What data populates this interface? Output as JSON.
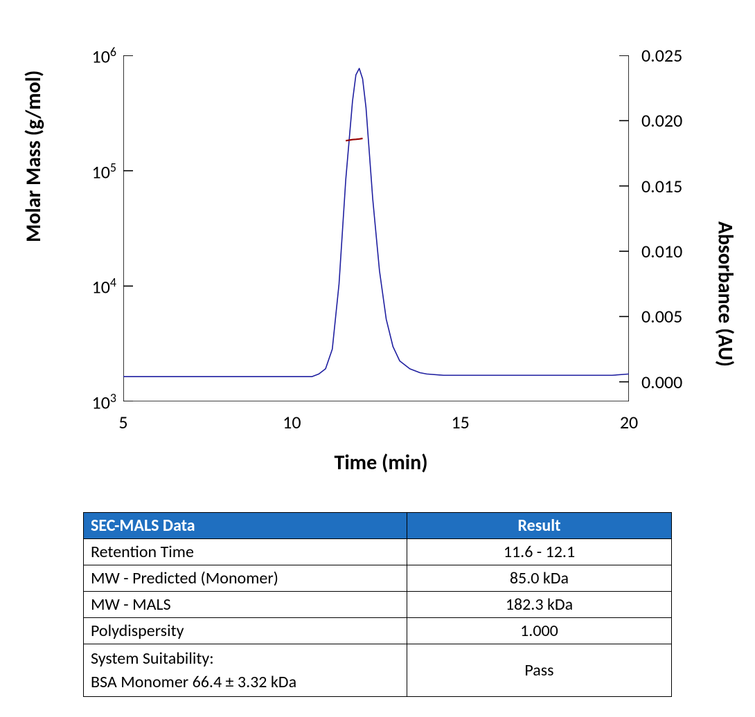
{
  "chart": {
    "type": "line-dual-axis",
    "xlabel": "Time (min)",
    "y1label": "Molar Mass (g/mol)",
    "y2label": "Absorbance (AU)",
    "xlim": [
      5,
      20
    ],
    "xtick_step": 5,
    "xticks": [
      5,
      10,
      15,
      20
    ],
    "xticks_minor": [
      6,
      7,
      8,
      9,
      11,
      12,
      13,
      14,
      16,
      17,
      18,
      19
    ],
    "y1_scale": "log",
    "y1lim_exp": [
      3,
      6
    ],
    "y1ticks_exp": [
      3,
      4,
      5,
      6
    ],
    "y2lim": [
      -0.0015,
      0.025
    ],
    "y2ticks": [
      0.0,
      0.005,
      0.01,
      0.015,
      0.02,
      0.025
    ],
    "background_color": "#ffffff",
    "axis_color": "#000000",
    "tick_length_major": 10,
    "tick_length_minor": 5,
    "line_width": 1.6,
    "title_fontsize": 30,
    "tick_fontsize": 26,
    "absorbance_series": {
      "color": "#1f1fa0",
      "x": [
        5.0,
        5.5,
        6.0,
        6.5,
        7.0,
        7.5,
        8.0,
        8.5,
        9.0,
        9.5,
        10.0,
        10.3,
        10.6,
        10.8,
        11.0,
        11.2,
        11.4,
        11.6,
        11.8,
        11.9,
        12.0,
        12.1,
        12.2,
        12.3,
        12.4,
        12.6,
        12.8,
        13.0,
        13.2,
        13.5,
        13.8,
        14.0,
        14.5,
        15.0,
        16.0,
        17.0,
        18.0,
        19.0,
        19.5,
        20.0
      ],
      "y": [
        0.0004,
        0.0004,
        0.0004,
        0.0004,
        0.0004,
        0.0004,
        0.0004,
        0.0004,
        0.0004,
        0.0004,
        0.0004,
        0.0004,
        0.0004,
        0.0006,
        0.001,
        0.0025,
        0.0075,
        0.0155,
        0.0215,
        0.0235,
        0.024,
        0.0232,
        0.021,
        0.0175,
        0.014,
        0.0085,
        0.0048,
        0.0027,
        0.0016,
        0.001,
        0.0007,
        0.0006,
        0.0005,
        0.0005,
        0.0005,
        0.0005,
        0.0005,
        0.0005,
        0.0005,
        0.0006
      ]
    },
    "molar_mass_series": {
      "color": "#990000",
      "x": [
        11.6,
        11.7,
        11.8,
        11.9,
        12.0,
        12.1
      ],
      "y_log10": [
        5.26,
        5.265,
        5.27,
        5.272,
        5.275,
        5.28
      ]
    }
  },
  "table": {
    "header_bg": "#1f6fc0",
    "header_color": "#ffffff",
    "border_color": "#000000",
    "columns": [
      "SEC-MALS Data",
      "Result"
    ],
    "col_widths": [
      "55%",
      "45%"
    ],
    "rows": [
      [
        "Retention Time",
        "11.6 - 12.1"
      ],
      [
        "MW - Predicted (Monomer)",
        "85.0 kDa"
      ],
      [
        "MW - MALS",
        "182.3 kDa"
      ],
      [
        "Polydispersity",
        "1.000"
      ]
    ],
    "system_suitability": {
      "label_line1": "System Suitability:",
      "label_line2": "BSA Monomer 66.4 ± 3.32 kDa",
      "value": "Pass"
    }
  }
}
